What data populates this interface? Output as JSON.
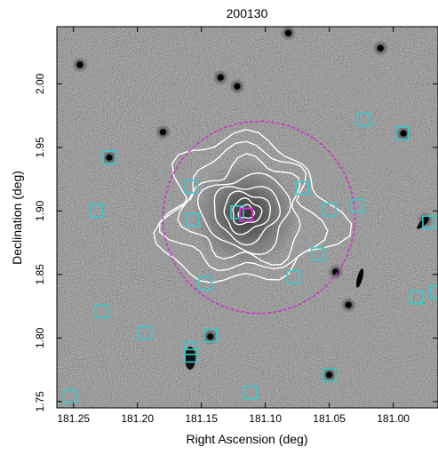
{
  "figure": {
    "title": "200130",
    "xlabel": "Right Ascension (deg)",
    "ylabel": "Declination (deg)"
  },
  "chart_data": {
    "type": "scatter",
    "title": "200130",
    "xlabel": "Right Ascension (deg)",
    "ylabel": "Declination (deg)",
    "x_reversed": true,
    "xlim": [
      181.263,
      180.965
    ],
    "ylim": [
      1.745,
      2.045
    ],
    "xticks": [
      "181.25",
      "181.20",
      "181.15",
      "181.10",
      "181.05",
      "181.00"
    ],
    "yticks": [
      "1.75",
      "1.80",
      "1.85",
      "1.90",
      "1.95",
      "2.00"
    ],
    "background": "greyscale optical sky image",
    "circle": {
      "ra": 181.105,
      "dec": 1.895,
      "radius_deg": 0.075,
      "color": "#cc33cc"
    },
    "contours_color": "#ffffff",
    "contour_center": {
      "ra": 181.115,
      "dec": 1.897
    },
    "contour_levels": 8,
    "center_marker_color": "#cc33cc",
    "member_marker_color": "#33cccc",
    "members": [
      {
        "ra": 181.222,
        "dec": 1.942
      },
      {
        "ra": 181.232,
        "dec": 1.9
      },
      {
        "ra": 181.228,
        "dec": 1.821
      },
      {
        "ra": 181.194,
        "dec": 1.804
      },
      {
        "ra": 181.158,
        "dec": 1.919
      },
      {
        "ra": 181.157,
        "dec": 1.893
      },
      {
        "ra": 181.147,
        "dec": 1.843
      },
      {
        "ra": 181.143,
        "dec": 1.802
      },
      {
        "ra": 181.158,
        "dec": 1.792
      },
      {
        "ra": 181.158,
        "dec": 1.786
      },
      {
        "ra": 181.122,
        "dec": 1.899
      },
      {
        "ra": 181.112,
        "dec": 1.757
      },
      {
        "ra": 181.078,
        "dec": 1.848
      },
      {
        "ra": 181.071,
        "dec": 1.918
      },
      {
        "ra": 181.059,
        "dec": 1.866
      },
      {
        "ra": 181.05,
        "dec": 1.901
      },
      {
        "ra": 181.05,
        "dec": 1.771
      },
      {
        "ra": 181.028,
        "dec": 1.904
      },
      {
        "ra": 181.023,
        "dec": 1.972
      },
      {
        "ra": 180.993,
        "dec": 1.961
      },
      {
        "ra": 180.982,
        "dec": 1.832
      },
      {
        "ra": 180.972,
        "dec": 1.891
      },
      {
        "ra": 180.966,
        "dec": 1.836
      },
      {
        "ra": 181.253,
        "dec": 1.754
      }
    ],
    "bright_sources": [
      {
        "ra": 181.135,
        "dec": 2.005
      },
      {
        "ra": 181.122,
        "dec": 1.998
      },
      {
        "ra": 181.045,
        "dec": 1.852
      },
      {
        "ra": 181.035,
        "dec": 1.826
      },
      {
        "ra": 180.975,
        "dec": 1.893
      },
      {
        "ra": 181.158,
        "dec": 1.787
      },
      {
        "ra": 181.143,
        "dec": 1.801
      },
      {
        "ra": 180.992,
        "dec": 1.961
      },
      {
        "ra": 181.222,
        "dec": 1.942
      },
      {
        "ra": 181.05,
        "dec": 1.771
      },
      {
        "ra": 181.082,
        "dec": 2.04
      },
      {
        "ra": 181.18,
        "dec": 1.962
      },
      {
        "ra": 181.245,
        "dec": 2.015
      },
      {
        "ra": 181.01,
        "dec": 2.028
      }
    ]
  }
}
